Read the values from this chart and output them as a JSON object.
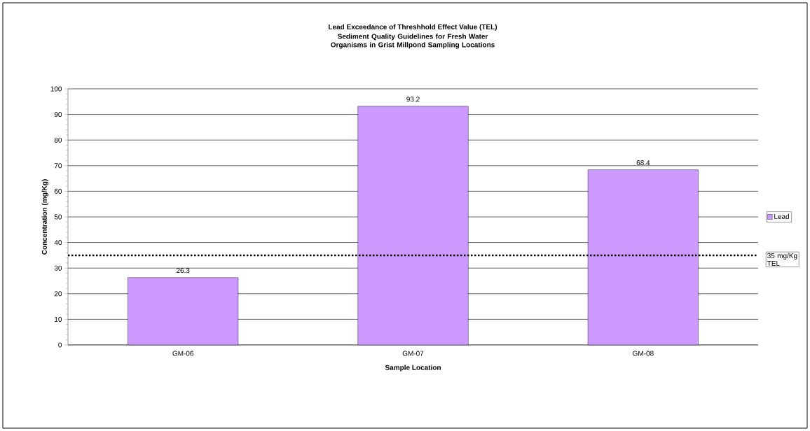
{
  "chart_data": {
    "type": "bar",
    "title": "Lead Exceedance of Threshhold Effect Value (TEL)",
    "subtitle": "Sediment Quality Guidelines for Fresh Water Organisms in Grist Millpond Sampling Locations",
    "xlabel": "Sample Location",
    "ylabel": "Concentration (mg/Kg)",
    "categories": [
      "GM-06",
      "GM-07",
      "GM-08"
    ],
    "series": [
      {
        "name": "Lead",
        "color": "#cc99ff",
        "values": [
          26.3,
          93.2,
          68.4
        ]
      }
    ],
    "ylim": [
      0,
      100
    ],
    "yticks": [
      0,
      10,
      20,
      30,
      40,
      50,
      60,
      70,
      80,
      90,
      100
    ],
    "grid": "y",
    "legend": "right",
    "data_labels": true,
    "ref_lines": [
      {
        "axis": "y",
        "value": 35,
        "label": "35 mg/Kg TEL",
        "line_style": "dotted",
        "color": "#000000"
      }
    ]
  }
}
